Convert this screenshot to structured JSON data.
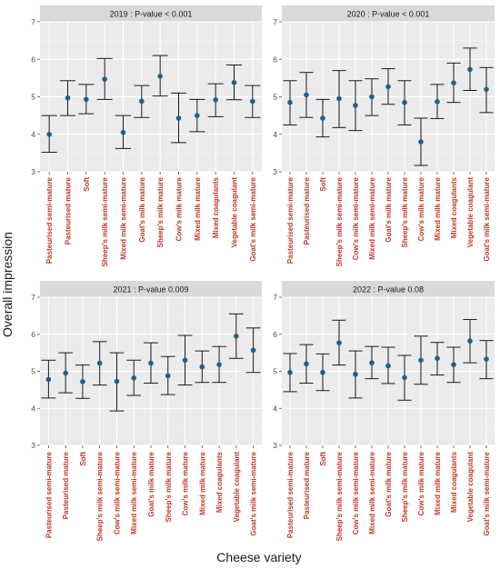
{
  "colors": {
    "point": "#1f5f8b",
    "tick_label": "#c0392b",
    "panel_background": "#ebebeb",
    "strip_background": "#d9d9d9"
  },
  "axis_titles": {
    "x": "Cheese variety",
    "y": "Overall impression"
  },
  "chart_data": [
    {
      "type": "scatter",
      "title": "2019 : P-value  < 0.001",
      "ylim": [
        3,
        7
      ],
      "yticks": [
        3,
        4,
        5,
        6,
        7
      ],
      "grid": true,
      "categories": [
        "Pasteurised semi-mature",
        "Pasteurised mature",
        "Soft",
        "Sheep's milk semi-mature",
        "Mixed milk semi-mature",
        "Goat's milk mature",
        "Sheep's milk mature",
        "Cow's milk mature",
        "Mixed milk mature",
        "Mixed coagulants",
        "Vegetable coagulant",
        "Goat's milk semi-mature"
      ],
      "values": [
        4.0,
        4.97,
        4.93,
        5.47,
        4.05,
        4.88,
        5.55,
        4.43,
        4.5,
        4.92,
        5.38,
        4.88
      ],
      "lower": [
        3.52,
        4.5,
        4.55,
        4.93,
        3.62,
        4.45,
        5.02,
        3.78,
        4.07,
        4.47,
        4.92,
        4.45
      ],
      "upper": [
        4.5,
        5.43,
        5.33,
        6.02,
        4.5,
        5.3,
        6.1,
        5.1,
        4.93,
        5.35,
        5.85,
        5.3
      ]
    },
    {
      "type": "scatter",
      "title": "2020 : P-value  < 0.001",
      "ylim": [
        3,
        7
      ],
      "yticks": [
        3,
        4,
        5,
        6,
        7
      ],
      "grid": true,
      "categories": [
        "Pasteurised semi-mature",
        "Pasteurised mature",
        "Soft",
        "Sheep's milk semi-mature",
        "Cow's milk semi-mature",
        "Mixed milk semi-mature",
        "Goat's milk mature",
        "Sheep's milk mature",
        "Cow's milk mature",
        "Mixed milk mature",
        "Mixed coagulants",
        "Vegetable coagulant",
        "Goat's milk semi-mature"
      ],
      "values": [
        4.85,
        5.05,
        4.43,
        4.95,
        4.77,
        5.0,
        5.27,
        4.85,
        3.8,
        4.87,
        5.37,
        5.73,
        5.2
      ],
      "lower": [
        4.25,
        4.45,
        3.93,
        4.18,
        4.1,
        4.5,
        4.8,
        4.25,
        3.17,
        4.42,
        4.85,
        5.17,
        4.58
      ],
      "upper": [
        5.43,
        5.65,
        4.93,
        5.7,
        5.43,
        5.48,
        5.75,
        5.43,
        4.43,
        5.33,
        5.9,
        6.3,
        5.78
      ]
    },
    {
      "type": "scatter",
      "title": "2021 : P-value  0.009",
      "ylim": [
        3,
        7
      ],
      "yticks": [
        3,
        4,
        5,
        6,
        7
      ],
      "grid": true,
      "categories": [
        "Pasteurised semi-mature",
        "Pasteurised mature",
        "Soft",
        "Sheep's milk semi-mature",
        "Cow's milk semi-mature",
        "Mixed milk semi-mature",
        "Goat's milk mature",
        "Sheep's milk mature",
        "Cow's milk mature",
        "Mixed milk mature",
        "Mixed coagulants",
        "Vegetable coagulant",
        "Goat's milk semi-mature"
      ],
      "values": [
        4.78,
        4.95,
        4.72,
        5.22,
        4.73,
        4.82,
        5.22,
        4.88,
        5.3,
        5.12,
        5.18,
        5.95,
        5.57
      ],
      "lower": [
        4.28,
        4.42,
        4.27,
        4.63,
        3.93,
        4.35,
        4.68,
        4.37,
        4.63,
        4.7,
        4.7,
        5.35,
        4.97
      ],
      "upper": [
        5.3,
        5.5,
        5.17,
        5.8,
        5.5,
        5.3,
        5.77,
        5.4,
        5.97,
        5.55,
        5.67,
        6.55,
        6.17
      ]
    },
    {
      "type": "scatter",
      "title": "2022 : P-value  0.08",
      "ylim": [
        3,
        7
      ],
      "yticks": [
        3,
        4,
        5,
        6,
        7
      ],
      "grid": true,
      "categories": [
        "Pasteurised semi-mature",
        "Pasteurised mature",
        "Soft",
        "Sheep's milk semi-mature",
        "Cow's milk semi-mature",
        "Mixed milk semi-mature",
        "Goat's milk mature",
        "Sheep's milk mature",
        "Cow's milk mature",
        "Mixed milk mature",
        "Mixed coagulants",
        "Vegetable coagulant",
        "Goat's milk semi-mature"
      ],
      "values": [
        4.97,
        5.2,
        4.97,
        5.77,
        4.92,
        5.23,
        5.15,
        4.83,
        5.3,
        5.35,
        5.18,
        5.82,
        5.33
      ],
      "lower": [
        4.45,
        4.68,
        4.48,
        5.17,
        4.28,
        4.8,
        4.67,
        4.22,
        4.65,
        4.9,
        4.7,
        5.23,
        4.8
      ],
      "upper": [
        5.48,
        5.72,
        5.47,
        6.38,
        5.55,
        5.67,
        5.65,
        5.43,
        5.95,
        5.78,
        5.65,
        6.4,
        5.83
      ]
    }
  ]
}
